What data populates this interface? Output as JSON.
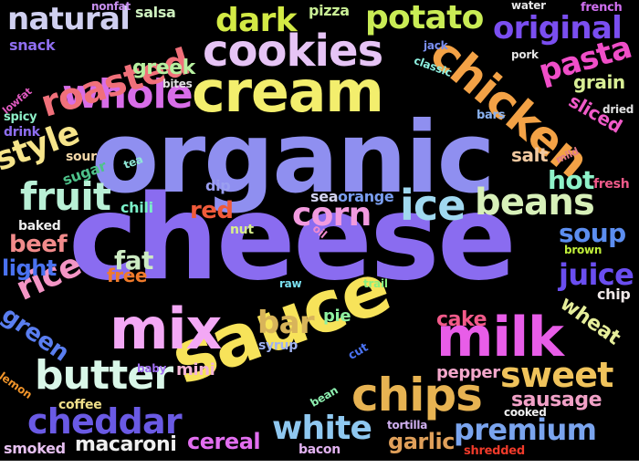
{
  "word_cloud": {
    "background": "#000000",
    "words": [
      {
        "text": "cheese",
        "color": "#8a6cf0"
      },
      {
        "text": "organic",
        "color": "#8f8ff0"
      },
      {
        "text": "sauce",
        "color": "#f7e35a"
      },
      {
        "text": "cream",
        "color": "#f3ee6d"
      },
      {
        "text": "mix",
        "color": "#f3a8f5"
      },
      {
        "text": "milk",
        "color": "#e85de8"
      },
      {
        "text": "chicken",
        "color": "#f3a246"
      },
      {
        "text": "cookies",
        "color": "#e6c4f5"
      },
      {
        "text": "whole",
        "color": "#d86de8"
      },
      {
        "text": "roasted",
        "color": "#f0707a"
      },
      {
        "text": "chips",
        "color": "#e7b352"
      },
      {
        "text": "beans",
        "color": "#d7f0b9"
      },
      {
        "text": "butter",
        "color": "#d9f7e8"
      },
      {
        "text": "premium",
        "color": "#7aa4ee"
      },
      {
        "text": "cheddar",
        "color": "#6a5ae4"
      },
      {
        "text": "white",
        "color": "#8fc8f0"
      },
      {
        "text": "fruit",
        "color": "#b9f0d6"
      },
      {
        "text": "potato",
        "color": "#c9ec55"
      },
      {
        "text": "original",
        "color": "#7a4ef0"
      },
      {
        "text": "natural",
        "color": "#d0d0f0"
      },
      {
        "text": "sweet",
        "color": "#f0c35b"
      },
      {
        "text": "ice",
        "color": "#a0d8ef"
      },
      {
        "text": "style",
        "color": "#f6e48a"
      },
      {
        "text": "dark",
        "color": "#d3ea45"
      },
      {
        "text": "pasta",
        "color": "#f04ec8"
      },
      {
        "text": "corn",
        "color": "#f29adf"
      },
      {
        "text": "rice",
        "color": "#f395c5"
      },
      {
        "text": "bar",
        "color": "#d8b45a"
      },
      {
        "text": "juice",
        "color": "#6a4ef0"
      },
      {
        "text": "soup",
        "color": "#5c8ef0"
      },
      {
        "text": "hot",
        "color": "#8ef2c9"
      },
      {
        "text": "fat",
        "color": "#cdebc3"
      },
      {
        "text": "beef",
        "color": "#f28b8b"
      },
      {
        "text": "red",
        "color": "#f05a3a"
      },
      {
        "text": "green",
        "color": "#5a7ef0"
      },
      {
        "text": "light",
        "color": "#4a72f0"
      },
      {
        "text": "cereal",
        "color": "#e26ef0"
      },
      {
        "text": "garlic",
        "color": "#e0a05a"
      },
      {
        "text": "macaroni",
        "color": "#f0f0f0"
      },
      {
        "text": "sausage",
        "color": "#f1a1c7"
      },
      {
        "text": "wheat",
        "color": "#e6ee9a"
      },
      {
        "text": "cake",
        "color": "#f25a8a"
      },
      {
        "text": "greek",
        "color": "#b7f0a0"
      },
      {
        "text": "grain",
        "color": "#d8ee95"
      },
      {
        "text": "sliced",
        "color": "#f05ac8"
      },
      {
        "text": "free",
        "color": "#f07a2a"
      },
      {
        "text": "pepper",
        "color": "#f3a7cb"
      },
      {
        "text": "mini",
        "color": "#f4b4d6"
      },
      {
        "text": "salt",
        "color": "#f0c8a0"
      },
      {
        "text": "smoked",
        "color": "#e6c0f0"
      },
      {
        "text": "sugar",
        "color": "#4ec28a"
      },
      {
        "text": "salsa",
        "color": "#cdefbe"
      },
      {
        "text": "pizza",
        "color": "#c9ee95"
      },
      {
        "text": "snack",
        "color": "#8f6ef0"
      },
      {
        "text": "sea",
        "color": "#d4d4f0"
      },
      {
        "text": "orange",
        "color": "#7a9ef0"
      },
      {
        "text": "chili",
        "color": "#7af0c8"
      },
      {
        "text": "baked",
        "color": "#eeeeee"
      },
      {
        "text": "pie",
        "color": "#8ef0a0"
      },
      {
        "text": "nut",
        "color": "#d8ef8a"
      },
      {
        "text": "fresh",
        "color": "#f05a8a"
      },
      {
        "text": "chip",
        "color": "#f0e8e8"
      },
      {
        "text": "sour",
        "color": "#f4d8a8"
      },
      {
        "text": "dip",
        "color": "#9a9ef0"
      },
      {
        "text": "tea",
        "color": "#8fe8d8"
      },
      {
        "text": "oil",
        "color": "#f08ad0"
      },
      {
        "text": "brown",
        "color": "#c0ee3a"
      },
      {
        "text": "syrup",
        "color": "#a0b2f0"
      },
      {
        "text": "cut",
        "color": "#4a72f0"
      },
      {
        "text": "raw",
        "color": "#7ae0f0"
      },
      {
        "text": "trail",
        "color": "#8af080"
      },
      {
        "text": "baby",
        "color": "#a06ef0"
      },
      {
        "text": "coffee",
        "color": "#f0e08a"
      },
      {
        "text": "bean",
        "color": "#8ef0b0"
      },
      {
        "text": "tortilla",
        "color": "#d0b0f0"
      },
      {
        "text": "cooked",
        "color": "#f0f0f0"
      },
      {
        "text": "bacon",
        "color": "#e2b2f0"
      },
      {
        "text": "shredded",
        "color": "#f03a2a"
      },
      {
        "text": "lemon",
        "color": "#f0942a"
      },
      {
        "text": "drink",
        "color": "#8e6ef0"
      },
      {
        "text": "spicy",
        "color": "#8ef0c8"
      },
      {
        "text": "lowfat",
        "color": "#e05ac0"
      },
      {
        "text": "nonfat",
        "color": "#c890f0"
      },
      {
        "text": "water",
        "color": "#e6e6e6"
      },
      {
        "text": "french",
        "color": "#d070f0"
      },
      {
        "text": "jack",
        "color": "#7a8ef0"
      },
      {
        "text": "classic",
        "color": "#8ef0e0"
      },
      {
        "text": "pork",
        "color": "#e4e4e4"
      },
      {
        "text": "bites",
        "color": "#e0e0e0"
      },
      {
        "text": "bars",
        "color": "#8ab2f0"
      },
      {
        "text": "dried",
        "color": "#e0e0e0"
      },
      {
        "text": "mild",
        "color": "#e07a8a"
      }
    ]
  }
}
